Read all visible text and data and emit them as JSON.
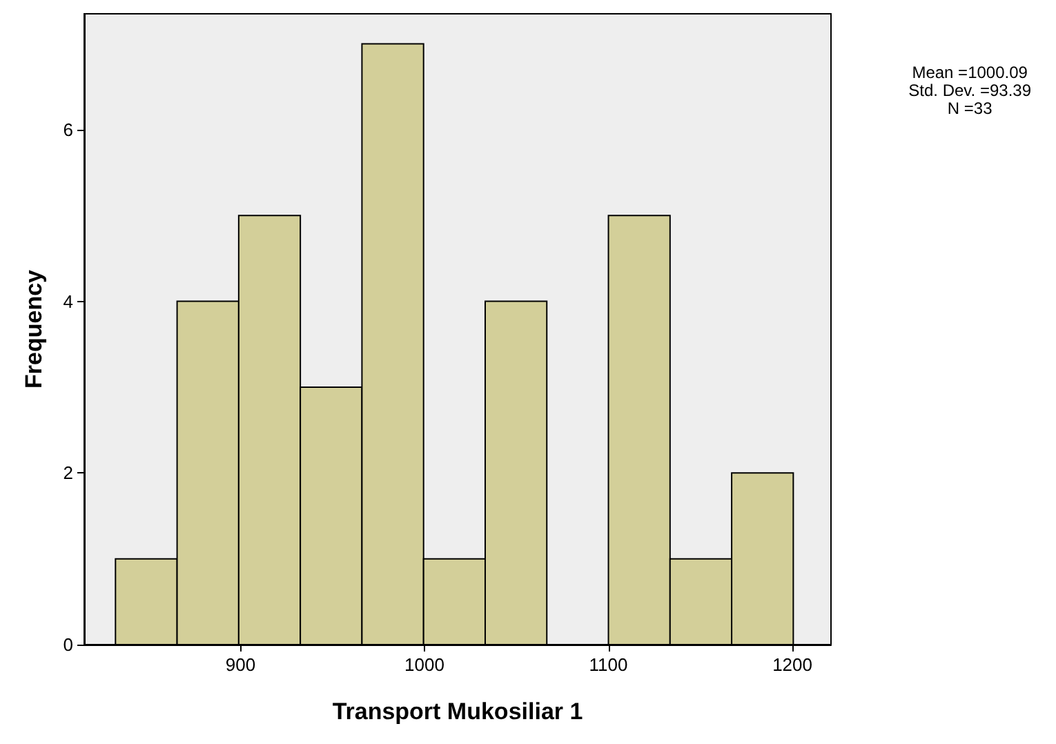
{
  "chart_data": {
    "type": "histogram",
    "xlabel": "Transport Mukosiliar 1",
    "ylabel": "Frequency",
    "bins": [
      832,
      865.5,
      899,
      932.5,
      966,
      999.5,
      1033,
      1066.5,
      1100,
      1133.5,
      1167,
      1200.5
    ],
    "values": [
      1,
      4,
      5,
      3,
      7,
      1,
      4,
      0,
      5,
      1,
      2
    ],
    "color": "#d3cf99",
    "xlim": [
      815,
      1221
    ],
    "xticks": [
      900,
      1000,
      1100,
      1200
    ],
    "ylim": [
      0,
      7.35
    ],
    "yticks": [
      0,
      2,
      4,
      6
    ],
    "grid": false,
    "annotations": [
      "Mean =1000.09",
      "Std. Dev. =93.39",
      "N =33"
    ]
  }
}
